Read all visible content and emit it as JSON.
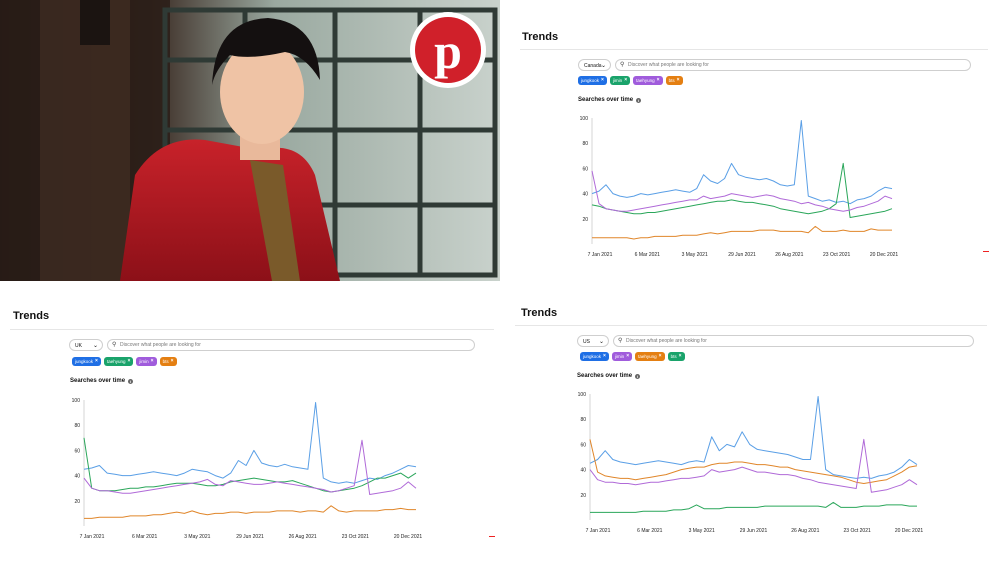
{
  "photo": {
    "logo_label": "Pinterest"
  },
  "colors": {
    "blue": "#1f6fe5",
    "green": "#1aa36b",
    "purple": "#a05cdc",
    "orange": "#e47f12",
    "line_blue": "#5a9fe6",
    "line_green": "#2aa65a",
    "line_purple": "#b06ad8",
    "line_orange": "#e0862a"
  },
  "panels": [
    {
      "title": "Trends",
      "region": "Canada",
      "search_placeholder": "Discover what people are looking for",
      "chips": [
        {
          "label": "jungkook",
          "color": "#1f6fe5"
        },
        {
          "label": "jimin",
          "color": "#1aa36b"
        },
        {
          "label": "taehyung",
          "color": "#a05cdc"
        },
        {
          "label": "bts",
          "color": "#e47f12"
        }
      ],
      "chart_title": "Searches over time"
    },
    {
      "title": "Trends",
      "region": "UK",
      "search_placeholder": "Discover what people are looking for",
      "chips": [
        {
          "label": "jungkook",
          "color": "#1f6fe5"
        },
        {
          "label": "taehyung",
          "color": "#1aa36b"
        },
        {
          "label": "jimin",
          "color": "#a05cdc"
        },
        {
          "label": "bts",
          "color": "#e47f12"
        }
      ],
      "chart_title": "Searches over time"
    },
    {
      "title": "Trends",
      "region": "US",
      "search_placeholder": "Discover what people are looking for",
      "chips": [
        {
          "label": "jungkook",
          "color": "#1f6fe5"
        },
        {
          "label": "jimin",
          "color": "#a05cdc"
        },
        {
          "label": "taehyung",
          "color": "#e47f12"
        },
        {
          "label": "bts",
          "color": "#1aa36b"
        }
      ],
      "chart_title": "Searches over time"
    }
  ],
  "chart_data": [
    {
      "type": "line",
      "title": "Searches over time",
      "region": "Canada",
      "x_ticks": [
        "7 Jan 2021",
        "6 Mar 2021",
        "3 May 2021",
        "29 Jun 2021",
        "26 Aug 2021",
        "23 Oct 2021",
        "20 Dec 2021"
      ],
      "ylim": [
        0,
        100
      ],
      "y_ticks": [
        20,
        40,
        60,
        80,
        100
      ],
      "grid": false,
      "series": [
        {
          "color": "#5a9fe6",
          "values": [
            40,
            42,
            47,
            40,
            38,
            37,
            38,
            40,
            39,
            40,
            41,
            42,
            43,
            42,
            41,
            44,
            55,
            50,
            48,
            52,
            64,
            55,
            53,
            52,
            51,
            52,
            50,
            47,
            46,
            47,
            98,
            38,
            36,
            34,
            35,
            33,
            34,
            32,
            35,
            36,
            38,
            42,
            45,
            44
          ]
        },
        {
          "color": "#2aa65a",
          "values": [
            31,
            30,
            28,
            27,
            26,
            25,
            24,
            24,
            25,
            25,
            26,
            27,
            28,
            29,
            30,
            31,
            32,
            33,
            34,
            34,
            35,
            34,
            33,
            33,
            32,
            31,
            30,
            28,
            27,
            26,
            25,
            24,
            25,
            26,
            28,
            32,
            64,
            21,
            22,
            23,
            24,
            25,
            26,
            28
          ]
        },
        {
          "color": "#b06ad8",
          "values": [
            58,
            32,
            28,
            27,
            26,
            26,
            27,
            28,
            29,
            30,
            31,
            32,
            33,
            34,
            35,
            35,
            38,
            36,
            37,
            38,
            40,
            39,
            38,
            37,
            38,
            39,
            38,
            36,
            35,
            34,
            32,
            33,
            31,
            30,
            28,
            27,
            26,
            27,
            29,
            30,
            32,
            34,
            38,
            36
          ]
        },
        {
          "color": "#e0862a",
          "values": [
            5,
            5,
            5,
            5,
            5,
            5,
            4,
            5,
            5,
            6,
            6,
            6,
            6,
            7,
            7,
            7,
            8,
            9,
            8,
            9,
            10,
            10,
            10,
            10,
            11,
            11,
            11,
            10,
            10,
            10,
            10,
            9,
            14,
            10,
            10,
            10,
            11,
            10,
            10,
            10,
            12,
            11,
            11,
            11
          ]
        }
      ]
    },
    {
      "type": "line",
      "title": "Searches over time",
      "region": "UK",
      "x_ticks": [
        "7 Jan 2021",
        "6 Mar 2021",
        "3 May 2021",
        "29 Jun 2021",
        "26 Aug 2021",
        "23 Oct 2021",
        "20 Dec 2021"
      ],
      "ylim": [
        0,
        100
      ],
      "y_ticks": [
        20,
        40,
        60,
        80,
        100
      ],
      "grid": false,
      "series": [
        {
          "color": "#5a9fe6",
          "values": [
            45,
            46,
            48,
            42,
            41,
            40,
            40,
            41,
            42,
            43,
            42,
            41,
            40,
            42,
            45,
            44,
            43,
            40,
            38,
            42,
            52,
            48,
            60,
            50,
            48,
            47,
            49,
            47,
            46,
            45,
            98,
            38,
            35,
            34,
            35,
            34,
            36,
            38,
            37,
            40,
            42,
            45,
            48,
            47
          ]
        },
        {
          "color": "#2aa65a",
          "values": [
            70,
            30,
            28,
            28,
            28,
            29,
            30,
            30,
            31,
            31,
            32,
            33,
            34,
            34,
            34,
            33,
            32,
            32,
            33,
            35,
            36,
            37,
            38,
            37,
            36,
            35,
            35,
            36,
            34,
            32,
            30,
            28,
            27,
            28,
            29,
            30,
            32,
            35,
            38,
            38,
            40,
            42,
            38,
            42
          ]
        },
        {
          "color": "#b06ad8",
          "values": [
            38,
            30,
            28,
            28,
            27,
            26,
            26,
            27,
            28,
            29,
            30,
            31,
            32,
            33,
            34,
            35,
            37,
            33,
            32,
            36,
            35,
            34,
            33,
            33,
            34,
            35,
            34,
            33,
            32,
            31,
            30,
            29,
            27,
            28,
            30,
            32,
            68,
            25,
            26,
            27,
            28,
            30,
            35,
            30
          ]
        },
        {
          "color": "#e0862a",
          "values": [
            6,
            6,
            7,
            7,
            7,
            7,
            8,
            8,
            8,
            9,
            9,
            10,
            11,
            10,
            12,
            10,
            9,
            10,
            10,
            11,
            11,
            10,
            11,
            11,
            11,
            12,
            12,
            12,
            11,
            12,
            12,
            11,
            16,
            12,
            11,
            12,
            12,
            12,
            12,
            13,
            13,
            14,
            13,
            13
          ]
        }
      ]
    },
    {
      "type": "line",
      "title": "Searches over time",
      "region": "US",
      "x_ticks": [
        "7 Jan 2021",
        "6 Mar 2021",
        "3 May 2021",
        "29 Jun 2021",
        "26 Aug 2021",
        "23 Oct 2021",
        "20 Dec 2021"
      ],
      "ylim": [
        0,
        100
      ],
      "y_ticks": [
        20,
        40,
        60,
        80,
        100
      ],
      "grid": false,
      "series": [
        {
          "color": "#5a9fe6",
          "values": [
            45,
            48,
            55,
            48,
            46,
            45,
            44,
            45,
            46,
            47,
            46,
            45,
            44,
            46,
            47,
            46,
            66,
            55,
            60,
            58,
            70,
            60,
            56,
            55,
            54,
            53,
            52,
            50,
            48,
            48,
            98,
            40,
            36,
            35,
            34,
            33,
            34,
            33,
            35,
            36,
            38,
            42,
            48,
            44
          ]
        },
        {
          "color": "#e0862a",
          "values": [
            64,
            38,
            35,
            34,
            33,
            33,
            32,
            33,
            34,
            35,
            36,
            38,
            40,
            41,
            42,
            42,
            44,
            45,
            45,
            46,
            46,
            45,
            44,
            44,
            43,
            42,
            42,
            40,
            39,
            38,
            37,
            36,
            35,
            34,
            32,
            30,
            29,
            30,
            31,
            32,
            35,
            38,
            42,
            43
          ]
        },
        {
          "color": "#b06ad8",
          "values": [
            40,
            32,
            30,
            30,
            29,
            29,
            28,
            29,
            30,
            30,
            31,
            32,
            33,
            33,
            34,
            35,
            40,
            38,
            39,
            40,
            42,
            40,
            38,
            38,
            37,
            36,
            36,
            35,
            33,
            32,
            30,
            29,
            28,
            27,
            26,
            25,
            64,
            22,
            23,
            24,
            26,
            28,
            32,
            28
          ]
        },
        {
          "color": "#2aa65a",
          "values": [
            6,
            6,
            6,
            6,
            6,
            6,
            6,
            7,
            7,
            7,
            7,
            8,
            8,
            9,
            12,
            9,
            9,
            9,
            10,
            10,
            10,
            10,
            10,
            11,
            11,
            11,
            11,
            11,
            11,
            11,
            11,
            10,
            14,
            10,
            10,
            10,
            11,
            11,
            11,
            12,
            12,
            12,
            11,
            11
          ]
        }
      ]
    }
  ]
}
